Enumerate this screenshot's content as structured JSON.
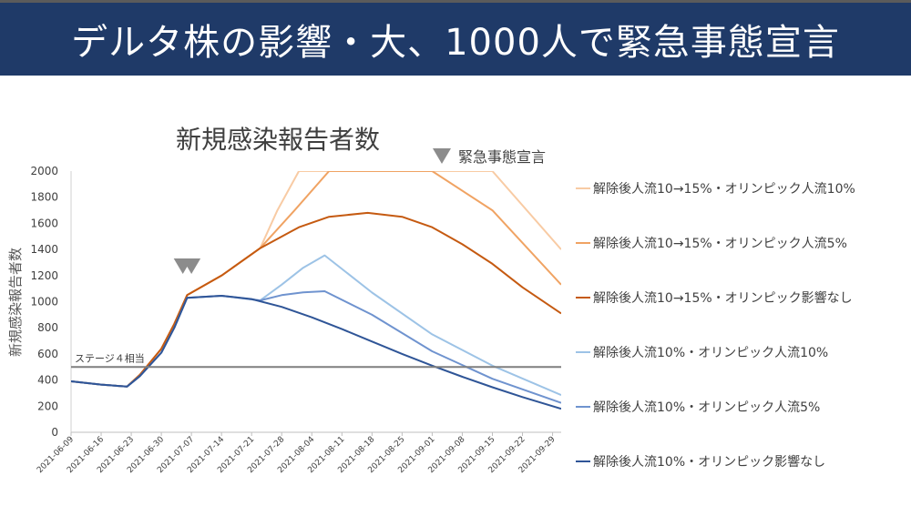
{
  "page": {
    "title": "デルタ株の影響・大、1000人で緊急事態宣言"
  },
  "chart_data": {
    "type": "line",
    "title": "新規感染報告者数",
    "xlabel": "",
    "ylabel": "新規感染報告者数",
    "ylim": [
      0,
      2000
    ],
    "yticks": [
      0,
      200,
      400,
      600,
      800,
      1000,
      1200,
      1400,
      1600,
      1800,
      2000
    ],
    "x_start": "2021-06-09",
    "x_end": "2021-10-01",
    "x_tick_labels": [
      "2021-06-09",
      "2021-06-16",
      "2021-06-23",
      "2021-06-30",
      "2021-07-07",
      "2021-07-14",
      "2021-07-21",
      "2021-07-28",
      "2021-08-04",
      "2021-08-11",
      "2021-08-18",
      "2021-08-25",
      "2021-09-01",
      "2021-09-08",
      "2021-09-15",
      "2021-09-22",
      "2021-09-29"
    ],
    "grid": false,
    "legend_position": "right",
    "reference_line": {
      "label": "ステージ４相当",
      "y": 500,
      "color": "#7f7f7f"
    },
    "emergency_markers": {
      "label": "緊急事態宣言",
      "dates": [
        "2021-07-05",
        "2021-07-07"
      ],
      "color": "#8c8c8c"
    },
    "series": [
      {
        "name": "解除後人流10→15%・オリンピック人流10%",
        "color": "#f8cba4",
        "points": [
          [
            "2021-06-09",
            390
          ],
          [
            "2021-06-16",
            365
          ],
          [
            "2021-06-22",
            350
          ],
          [
            "2021-06-25",
            440
          ],
          [
            "2021-06-30",
            640
          ],
          [
            "2021-07-03",
            830
          ],
          [
            "2021-07-06",
            1050
          ],
          [
            "2021-07-14",
            1200
          ],
          [
            "2021-07-23",
            1410
          ],
          [
            "2021-07-27",
            1700
          ],
          [
            "2021-08-01",
            2000
          ],
          [
            "2021-09-15",
            2000
          ],
          [
            "2021-10-01",
            1400
          ]
        ]
      },
      {
        "name": "解除後人流10→15%・オリンピック人流5%",
        "color": "#f0a363",
        "points": [
          [
            "2021-06-09",
            390
          ],
          [
            "2021-06-16",
            365
          ],
          [
            "2021-06-22",
            350
          ],
          [
            "2021-06-25",
            440
          ],
          [
            "2021-06-30",
            640
          ],
          [
            "2021-07-03",
            830
          ],
          [
            "2021-07-06",
            1050
          ],
          [
            "2021-07-14",
            1200
          ],
          [
            "2021-07-23",
            1410
          ],
          [
            "2021-07-31",
            1700
          ],
          [
            "2021-08-08",
            2000
          ],
          [
            "2021-09-01",
            2000
          ],
          [
            "2021-09-15",
            1700
          ],
          [
            "2021-10-01",
            1130
          ]
        ]
      },
      {
        "name": "解除後人流10→15%・オリンピック影響なし",
        "color": "#c55a11",
        "points": [
          [
            "2021-06-09",
            390
          ],
          [
            "2021-06-16",
            365
          ],
          [
            "2021-06-22",
            350
          ],
          [
            "2021-06-25",
            440
          ],
          [
            "2021-06-30",
            640
          ],
          [
            "2021-07-03",
            830
          ],
          [
            "2021-07-06",
            1050
          ],
          [
            "2021-07-14",
            1200
          ],
          [
            "2021-07-23",
            1410
          ],
          [
            "2021-08-01",
            1570
          ],
          [
            "2021-08-08",
            1650
          ],
          [
            "2021-08-17",
            1680
          ],
          [
            "2021-08-25",
            1650
          ],
          [
            "2021-09-01",
            1570
          ],
          [
            "2021-09-08",
            1440
          ],
          [
            "2021-09-15",
            1290
          ],
          [
            "2021-09-22",
            1110
          ],
          [
            "2021-10-01",
            910
          ]
        ]
      },
      {
        "name": "解除後人流10%・オリンピック人流10%",
        "color": "#9dc3e6",
        "points": [
          [
            "2021-06-09",
            390
          ],
          [
            "2021-06-16",
            365
          ],
          [
            "2021-06-22",
            350
          ],
          [
            "2021-06-25",
            430
          ],
          [
            "2021-06-30",
            610
          ],
          [
            "2021-07-03",
            800
          ],
          [
            "2021-07-06",
            1030
          ],
          [
            "2021-07-14",
            1045
          ],
          [
            "2021-07-23",
            1010
          ],
          [
            "2021-07-28",
            1130
          ],
          [
            "2021-08-02",
            1260
          ],
          [
            "2021-08-07",
            1355
          ],
          [
            "2021-08-18",
            1070
          ],
          [
            "2021-09-01",
            750
          ],
          [
            "2021-09-15",
            510
          ],
          [
            "2021-10-01",
            285
          ]
        ]
      },
      {
        "name": "解除後人流10%・オリンピック人流5%",
        "color": "#6f93cf",
        "points": [
          [
            "2021-06-09",
            390
          ],
          [
            "2021-06-16",
            365
          ],
          [
            "2021-06-22",
            350
          ],
          [
            "2021-06-25",
            430
          ],
          [
            "2021-06-30",
            610
          ],
          [
            "2021-07-03",
            800
          ],
          [
            "2021-07-06",
            1030
          ],
          [
            "2021-07-14",
            1045
          ],
          [
            "2021-07-23",
            1010
          ],
          [
            "2021-07-28",
            1050
          ],
          [
            "2021-08-02",
            1072
          ],
          [
            "2021-08-07",
            1080
          ],
          [
            "2021-08-18",
            900
          ],
          [
            "2021-09-01",
            620
          ],
          [
            "2021-09-15",
            410
          ],
          [
            "2021-10-01",
            225
          ]
        ]
      },
      {
        "name": "解除後人流10%・オリンピック影響なし",
        "color": "#2f5597",
        "points": [
          [
            "2021-06-09",
            390
          ],
          [
            "2021-06-16",
            365
          ],
          [
            "2021-06-22",
            350
          ],
          [
            "2021-06-25",
            430
          ],
          [
            "2021-06-30",
            610
          ],
          [
            "2021-07-03",
            800
          ],
          [
            "2021-07-06",
            1030
          ],
          [
            "2021-07-14",
            1045
          ],
          [
            "2021-07-21",
            1020
          ],
          [
            "2021-07-28",
            960
          ],
          [
            "2021-08-04",
            880
          ],
          [
            "2021-08-11",
            790
          ],
          [
            "2021-08-18",
            695
          ],
          [
            "2021-08-25",
            600
          ],
          [
            "2021-09-01",
            510
          ],
          [
            "2021-09-08",
            425
          ],
          [
            "2021-09-15",
            345
          ],
          [
            "2021-09-22",
            270
          ],
          [
            "2021-10-01",
            180
          ]
        ]
      }
    ]
  }
}
